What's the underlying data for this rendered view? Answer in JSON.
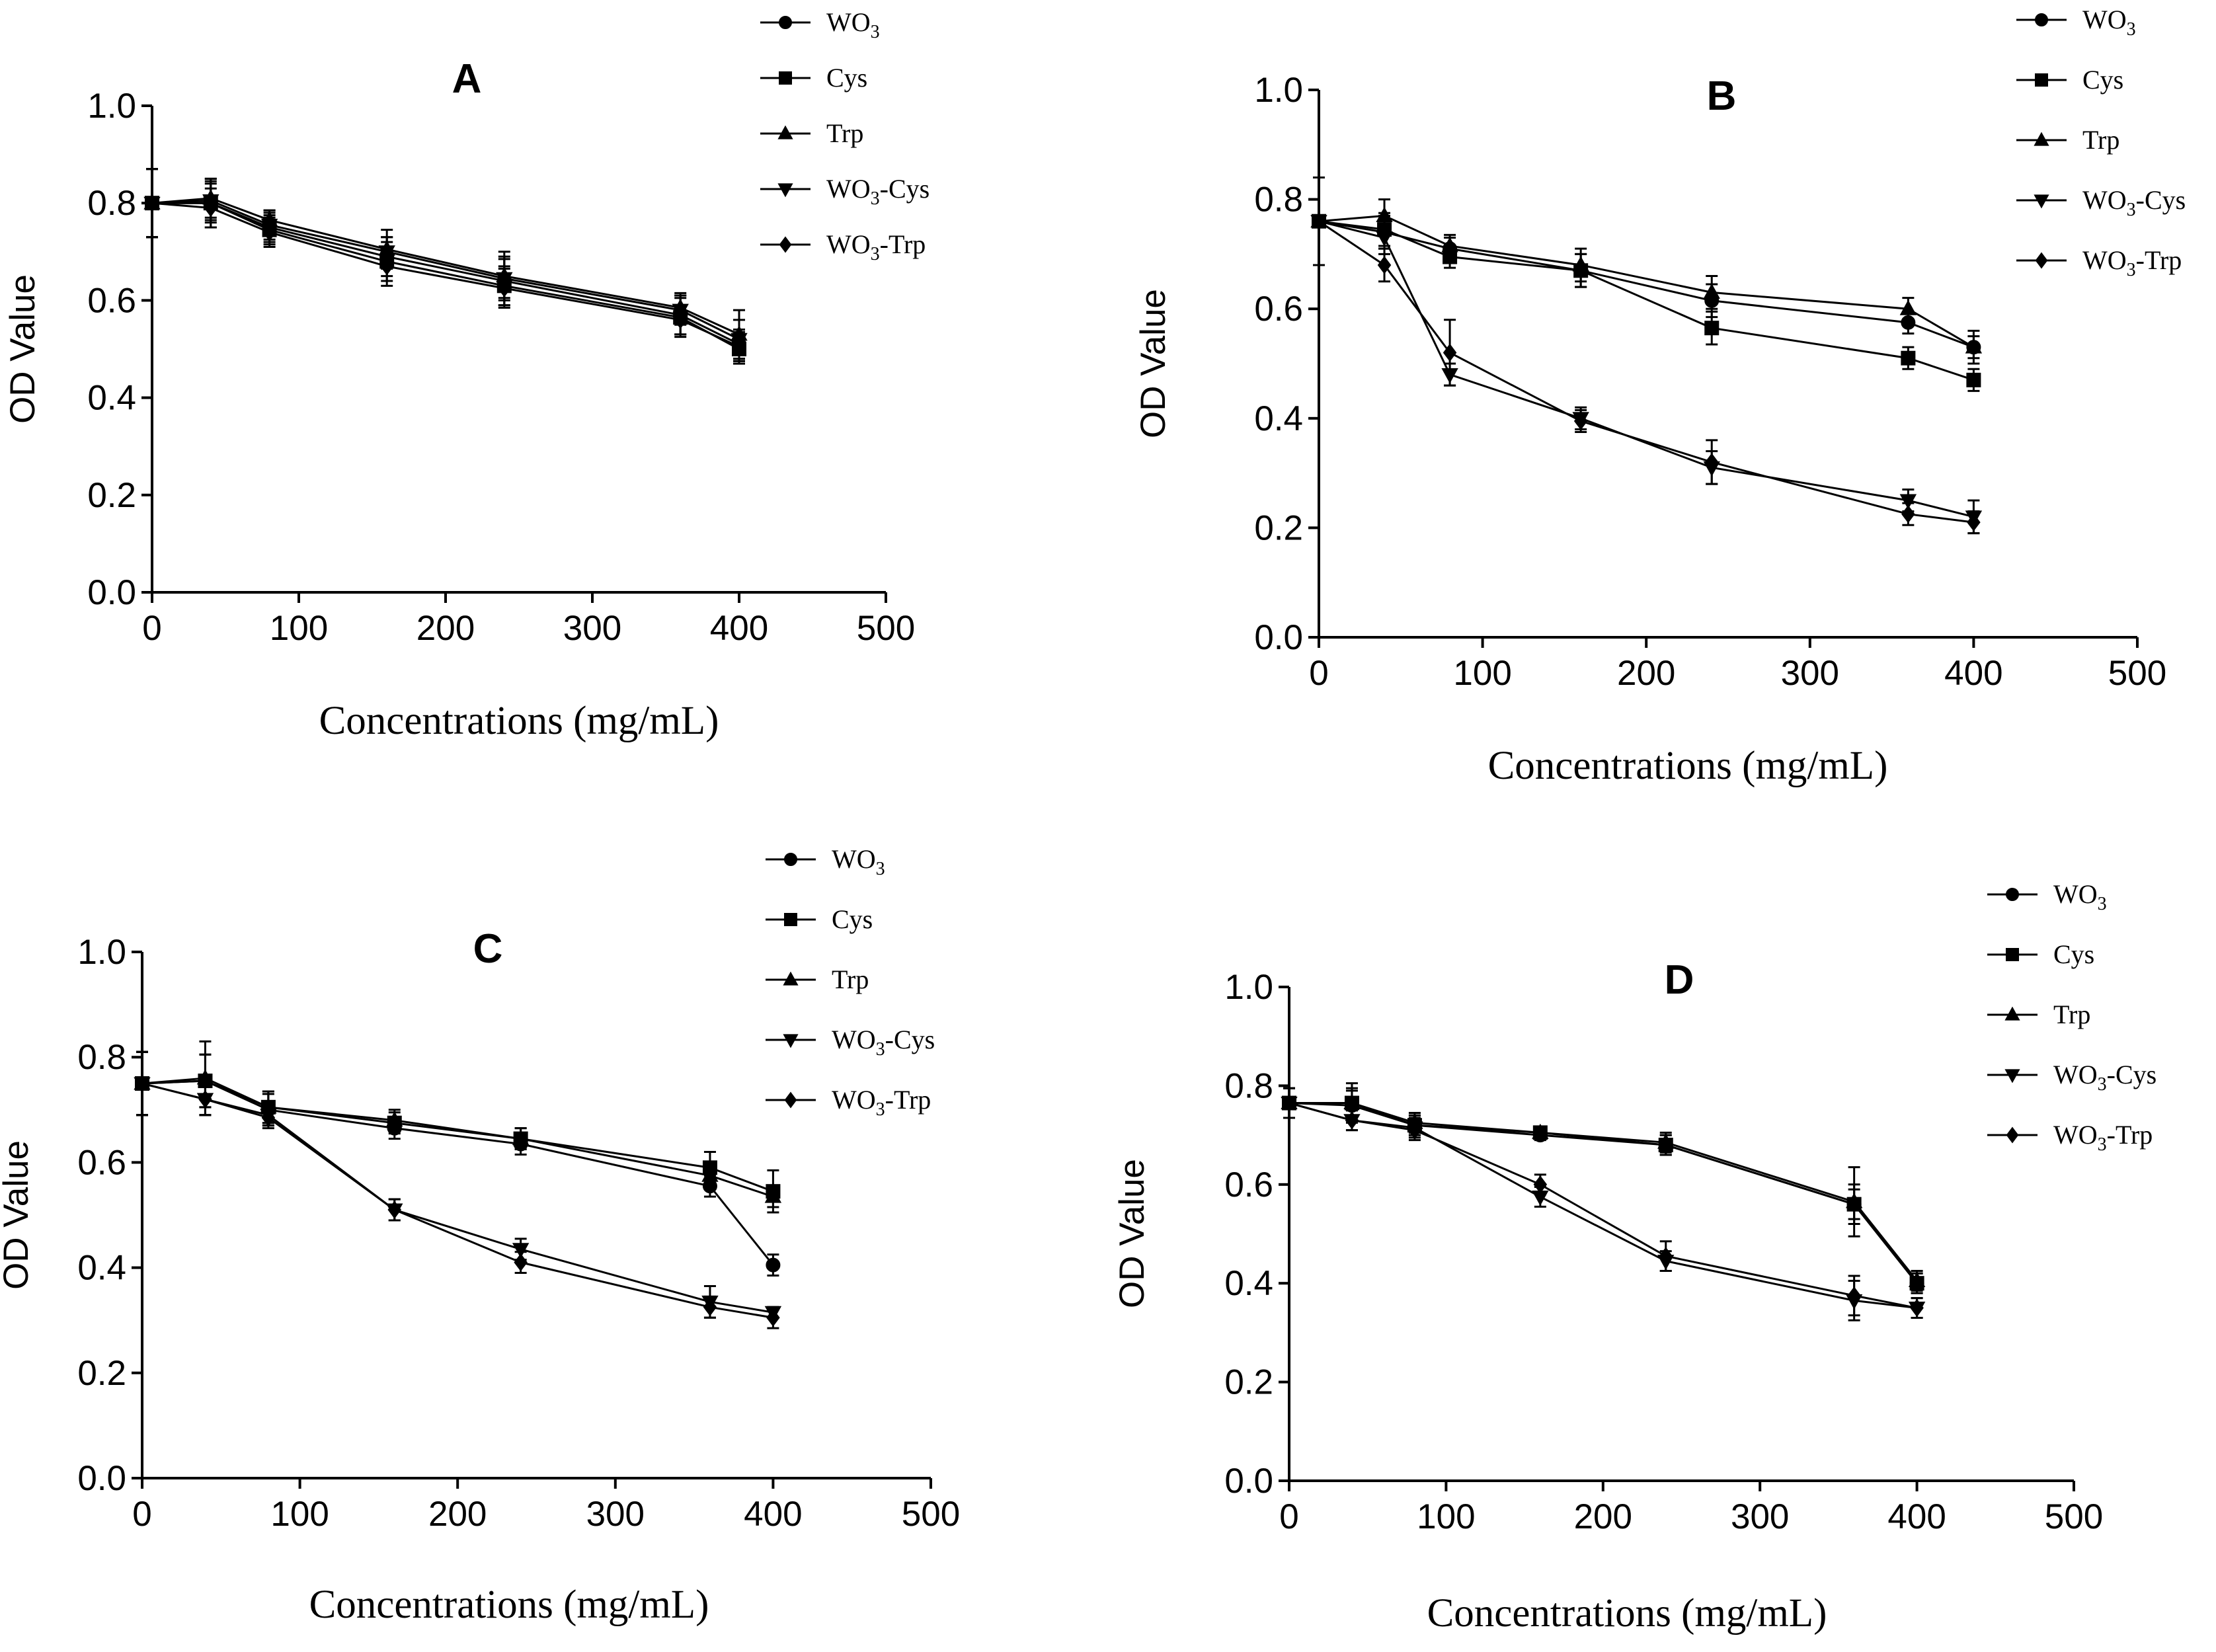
{
  "chart_data": [
    {
      "type": "line",
      "title": "A",
      "xlabel": "Concentrations (mg/mL)",
      "ylabel": "OD Value",
      "xlim": [
        0,
        500
      ],
      "ylim": [
        0,
        1.0
      ],
      "x_ticks": [
        "0",
        "100",
        "200",
        "300",
        "400",
        "500"
      ],
      "y_ticks": [
        "0.0",
        "0.2",
        "0.4",
        "0.6",
        "0.8",
        "1.0"
      ],
      "legend": [
        {
          "label": "WO",
          "sub": "3",
          "suffix": ""
        },
        {
          "label": "Cys",
          "sub": "",
          "suffix": ""
        },
        {
          "label": "Trp",
          "sub": "",
          "suffix": ""
        },
        {
          "label": "WO",
          "sub": "3",
          "suffix": "-Cys"
        },
        {
          "label": "WO",
          "sub": "3",
          "suffix": "-Trp"
        }
      ],
      "x": [
        0,
        40,
        80,
        160,
        240,
        360,
        400
      ],
      "series": [
        {
          "name": "WO3",
          "marker": "circle",
          "values": [
            0.8,
            0.8,
            0.75,
            0.69,
            0.64,
            0.57,
            0.51
          ],
          "errors": [
            0.07,
            0.05,
            0.03,
            0.04,
            0.05,
            0.04,
            0.03
          ]
        },
        {
          "name": "Cys",
          "marker": "square",
          "values": [
            0.8,
            0.8,
            0.745,
            0.68,
            0.63,
            0.565,
            0.5
          ],
          "errors": [
            0.07,
            0.04,
            0.03,
            0.04,
            0.04,
            0.04,
            0.03
          ]
        },
        {
          "name": "Trp",
          "marker": "triangle-up",
          "values": [
            0.8,
            0.81,
            0.765,
            0.705,
            0.65,
            0.585,
            0.53
          ],
          "errors": [
            0.07,
            0.04,
            0.02,
            0.04,
            0.05,
            0.03,
            0.05
          ]
        },
        {
          "name": "WO3-Cys",
          "marker": "triangle-down",
          "values": [
            0.8,
            0.805,
            0.755,
            0.7,
            0.645,
            0.58,
            0.52
          ],
          "errors": [
            0.07,
            0.04,
            0.03,
            0.03,
            0.04,
            0.03,
            0.04
          ]
        },
        {
          "name": "WO3-Trp",
          "marker": "diamond",
          "values": [
            0.8,
            0.79,
            0.74,
            0.67,
            0.625,
            0.56,
            0.505
          ],
          "errors": [
            0.07,
            0.04,
            0.03,
            0.04,
            0.04,
            0.03,
            0.03
          ]
        }
      ]
    },
    {
      "type": "line",
      "title": "B",
      "xlabel": "Concentrations (mg/mL)",
      "ylabel": "OD Value",
      "xlim": [
        0,
        500
      ],
      "ylim": [
        0,
        1.0
      ],
      "x_ticks": [
        "0",
        "100",
        "200",
        "300",
        "400",
        "500"
      ],
      "y_ticks": [
        "0.0",
        "0.2",
        "0.4",
        "0.6",
        "0.8",
        "1.0"
      ],
      "legend": [
        {
          "label": "WO",
          "sub": "3",
          "suffix": ""
        },
        {
          "label": "Cys",
          "sub": "",
          "suffix": ""
        },
        {
          "label": "Trp",
          "sub": "",
          "suffix": ""
        },
        {
          "label": "WO",
          "sub": "3",
          "suffix": "-Cys"
        },
        {
          "label": "WO",
          "sub": "3",
          "suffix": "-Trp"
        }
      ],
      "x": [
        0,
        40,
        80,
        160,
        240,
        360,
        400
      ],
      "series": [
        {
          "name": "WO3",
          "marker": "circle",
          "values": [
            0.76,
            0.74,
            0.71,
            0.67,
            0.615,
            0.575,
            0.53
          ],
          "errors": [
            0.08,
            0.03,
            0.02,
            0.03,
            0.03,
            0.02,
            0.02
          ]
        },
        {
          "name": "Cys",
          "marker": "square",
          "values": [
            0.76,
            0.745,
            0.695,
            0.67,
            0.565,
            0.51,
            0.47
          ],
          "errors": [
            0.08,
            0.03,
            0.02,
            0.03,
            0.03,
            0.02,
            0.02
          ]
        },
        {
          "name": "Trp",
          "marker": "triangle-up",
          "values": [
            0.76,
            0.77,
            0.715,
            0.68,
            0.63,
            0.6,
            0.53
          ],
          "errors": [
            0.08,
            0.03,
            0.02,
            0.03,
            0.03,
            0.02,
            0.03
          ]
        },
        {
          "name": "WO3-Cys",
          "marker": "triangle-down",
          "values": [
            0.76,
            0.73,
            0.48,
            0.4,
            0.31,
            0.25,
            0.22
          ],
          "errors": [
            0.08,
            0.03,
            0.02,
            0.02,
            0.03,
            0.02,
            0.03
          ]
        },
        {
          "name": "WO3-Trp",
          "marker": "diamond",
          "values": [
            0.76,
            0.68,
            0.52,
            0.395,
            0.32,
            0.225,
            0.21
          ],
          "errors": [
            0.08,
            0.03,
            0.06,
            0.02,
            0.04,
            0.02,
            0.02
          ]
        }
      ]
    },
    {
      "type": "line",
      "title": "C",
      "xlabel": "Concentrations (mg/mL)",
      "ylabel": "OD Value",
      "xlim": [
        0,
        500
      ],
      "ylim": [
        0,
        1.0
      ],
      "x_ticks": [
        "0",
        "100",
        "200",
        "300",
        "400",
        "500"
      ],
      "y_ticks": [
        "0.0",
        "0.2",
        "0.4",
        "0.6",
        "0.8",
        "1.0"
      ],
      "legend": [
        {
          "label": "WO",
          "sub": "3",
          "suffix": ""
        },
        {
          "label": "Cys",
          "sub": "",
          "suffix": ""
        },
        {
          "label": "Trp",
          "sub": "",
          "suffix": ""
        },
        {
          "label": "WO",
          "sub": "3",
          "suffix": "-Cys"
        },
        {
          "label": "WO",
          "sub": "3",
          "suffix": "-Trp"
        }
      ],
      "x": [
        0,
        40,
        80,
        160,
        240,
        360,
        400
      ],
      "series": [
        {
          "name": "WO3",
          "marker": "circle",
          "values": [
            0.75,
            0.755,
            0.7,
            0.665,
            0.635,
            0.555,
            0.405
          ],
          "errors": [
            0.06,
            0.05,
            0.03,
            0.02,
            0.02,
            0.02,
            0.02
          ]
        },
        {
          "name": "Cys",
          "marker": "square",
          "values": [
            0.75,
            0.755,
            0.705,
            0.675,
            0.645,
            0.59,
            0.545
          ],
          "errors": [
            0.06,
            0.05,
            0.03,
            0.02,
            0.02,
            0.03,
            0.04
          ]
        },
        {
          "name": "Trp",
          "marker": "triangle-up",
          "values": [
            0.75,
            0.76,
            0.705,
            0.68,
            0.645,
            0.575,
            0.535
          ],
          "errors": [
            0.06,
            0.07,
            0.03,
            0.02,
            0.02,
            0.02,
            0.02
          ]
        },
        {
          "name": "WO3-Cys",
          "marker": "triangle-down",
          "values": [
            0.75,
            0.72,
            0.69,
            0.51,
            0.435,
            0.335,
            0.315
          ],
          "errors": [
            0.06,
            0.03,
            0.02,
            0.02,
            0.02,
            0.03,
            0.01
          ]
        },
        {
          "name": "WO3-Trp",
          "marker": "diamond",
          "values": [
            0.75,
            0.72,
            0.685,
            0.51,
            0.41,
            0.325,
            0.305
          ],
          "errors": [
            0.06,
            0.03,
            0.02,
            0.02,
            0.02,
            0.02,
            0.02
          ]
        }
      ]
    },
    {
      "type": "line",
      "title": "D",
      "xlabel": "Concentrations (mg/mL)",
      "ylabel": "OD Value",
      "xlim": [
        0,
        500
      ],
      "ylim": [
        0,
        1.0
      ],
      "x_ticks": [
        "0",
        "100",
        "200",
        "300",
        "400",
        "500"
      ],
      "y_ticks": [
        "0.0",
        "0.2",
        "0.4",
        "0.6",
        "0.8",
        "1.0"
      ],
      "legend": [
        {
          "label": "WO",
          "sub": "3",
          "suffix": ""
        },
        {
          "label": "Cys",
          "sub": "",
          "suffix": ""
        },
        {
          "label": "Trp",
          "sub": "",
          "suffix": ""
        },
        {
          "label": "WO",
          "sub": "3",
          "suffix": "-Cys"
        },
        {
          "label": "WO",
          "sub": "3",
          "suffix": "-Trp"
        }
      ],
      "x": [
        0,
        40,
        80,
        160,
        240,
        360,
        400
      ],
      "series": [
        {
          "name": "WO3",
          "marker": "circle",
          "values": [
            0.765,
            0.76,
            0.72,
            0.7,
            0.68,
            0.56,
            0.4
          ],
          "errors": [
            0.03,
            0.03,
            0.02,
            0.01,
            0.02,
            0.03,
            0.02
          ]
        },
        {
          "name": "Cys",
          "marker": "square",
          "values": [
            0.765,
            0.765,
            0.72,
            0.705,
            0.68,
            0.56,
            0.4
          ],
          "errors": [
            0.03,
            0.03,
            0.02,
            0.01,
            0.02,
            0.04,
            0.02
          ]
        },
        {
          "name": "Trp",
          "marker": "triangle-up",
          "values": [
            0.765,
            0.765,
            0.725,
            0.705,
            0.685,
            0.565,
            0.405
          ],
          "errors": [
            0.03,
            0.04,
            0.02,
            0.01,
            0.02,
            0.07,
            0.02
          ]
        },
        {
          "name": "WO3-Cys",
          "marker": "triangle-down",
          "values": [
            0.765,
            0.73,
            0.715,
            0.575,
            0.445,
            0.365,
            0.35
          ],
          "errors": [
            0.03,
            0.02,
            0.02,
            0.02,
            0.02,
            0.04,
            0.02
          ]
        },
        {
          "name": "WO3-Trp",
          "marker": "diamond",
          "values": [
            0.765,
            0.73,
            0.71,
            0.6,
            0.455,
            0.375,
            0.35
          ],
          "errors": [
            0.03,
            0.02,
            0.02,
            0.02,
            0.03,
            0.04,
            0.02
          ]
        }
      ]
    }
  ]
}
